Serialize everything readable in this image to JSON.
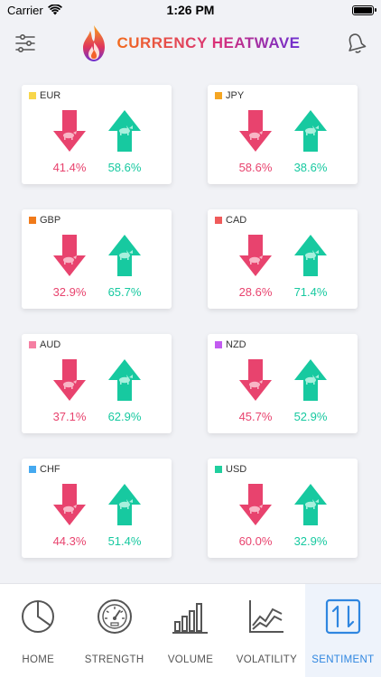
{
  "status_bar": {
    "carrier": "Carrier",
    "time": "1:26 PM",
    "battery_level": 1.0
  },
  "header": {
    "title": "CURRENCY HEATWAVE",
    "menu_icon": "sliders-icon",
    "bell_icon": "bell-icon"
  },
  "colors": {
    "bearish": "#e8436e",
    "bullish": "#17c9a0",
    "active_tab": "#2f86e0"
  },
  "cards": [
    {
      "currency": "EUR",
      "color": "#f8d64a",
      "bearish": "41.4%",
      "bullish": "58.6%"
    },
    {
      "currency": "JPY",
      "color": "#f5a623",
      "bearish": "58.6%",
      "bullish": "38.6%"
    },
    {
      "currency": "GBP",
      "color": "#f07a1a",
      "bearish": "32.9%",
      "bullish": "65.7%"
    },
    {
      "currency": "CAD",
      "color": "#ef5b5b",
      "bearish": "28.6%",
      "bullish": "71.4%"
    },
    {
      "currency": "AUD",
      "color": "#f57fa2",
      "bearish": "37.1%",
      "bullish": "62.9%"
    },
    {
      "currency": "NZD",
      "color": "#c25bf0",
      "bearish": "45.7%",
      "bullish": "52.9%"
    },
    {
      "currency": "CHF",
      "color": "#45a9f0",
      "bearish": "44.3%",
      "bullish": "51.4%"
    },
    {
      "currency": "USD",
      "color": "#20cf9e",
      "bearish": "60.0%",
      "bullish": "32.9%"
    }
  ],
  "tabs": [
    {
      "label": "HOME",
      "icon": "pie-chart-icon"
    },
    {
      "label": "STRENGTH",
      "icon": "gauge-icon"
    },
    {
      "label": "VOLUME",
      "icon": "bar-chart-icon"
    },
    {
      "label": "VOLATILITY",
      "icon": "line-chart-icon"
    },
    {
      "label": "SENTIMENT",
      "icon": "sentiment-arrows-icon",
      "active": true
    }
  ]
}
